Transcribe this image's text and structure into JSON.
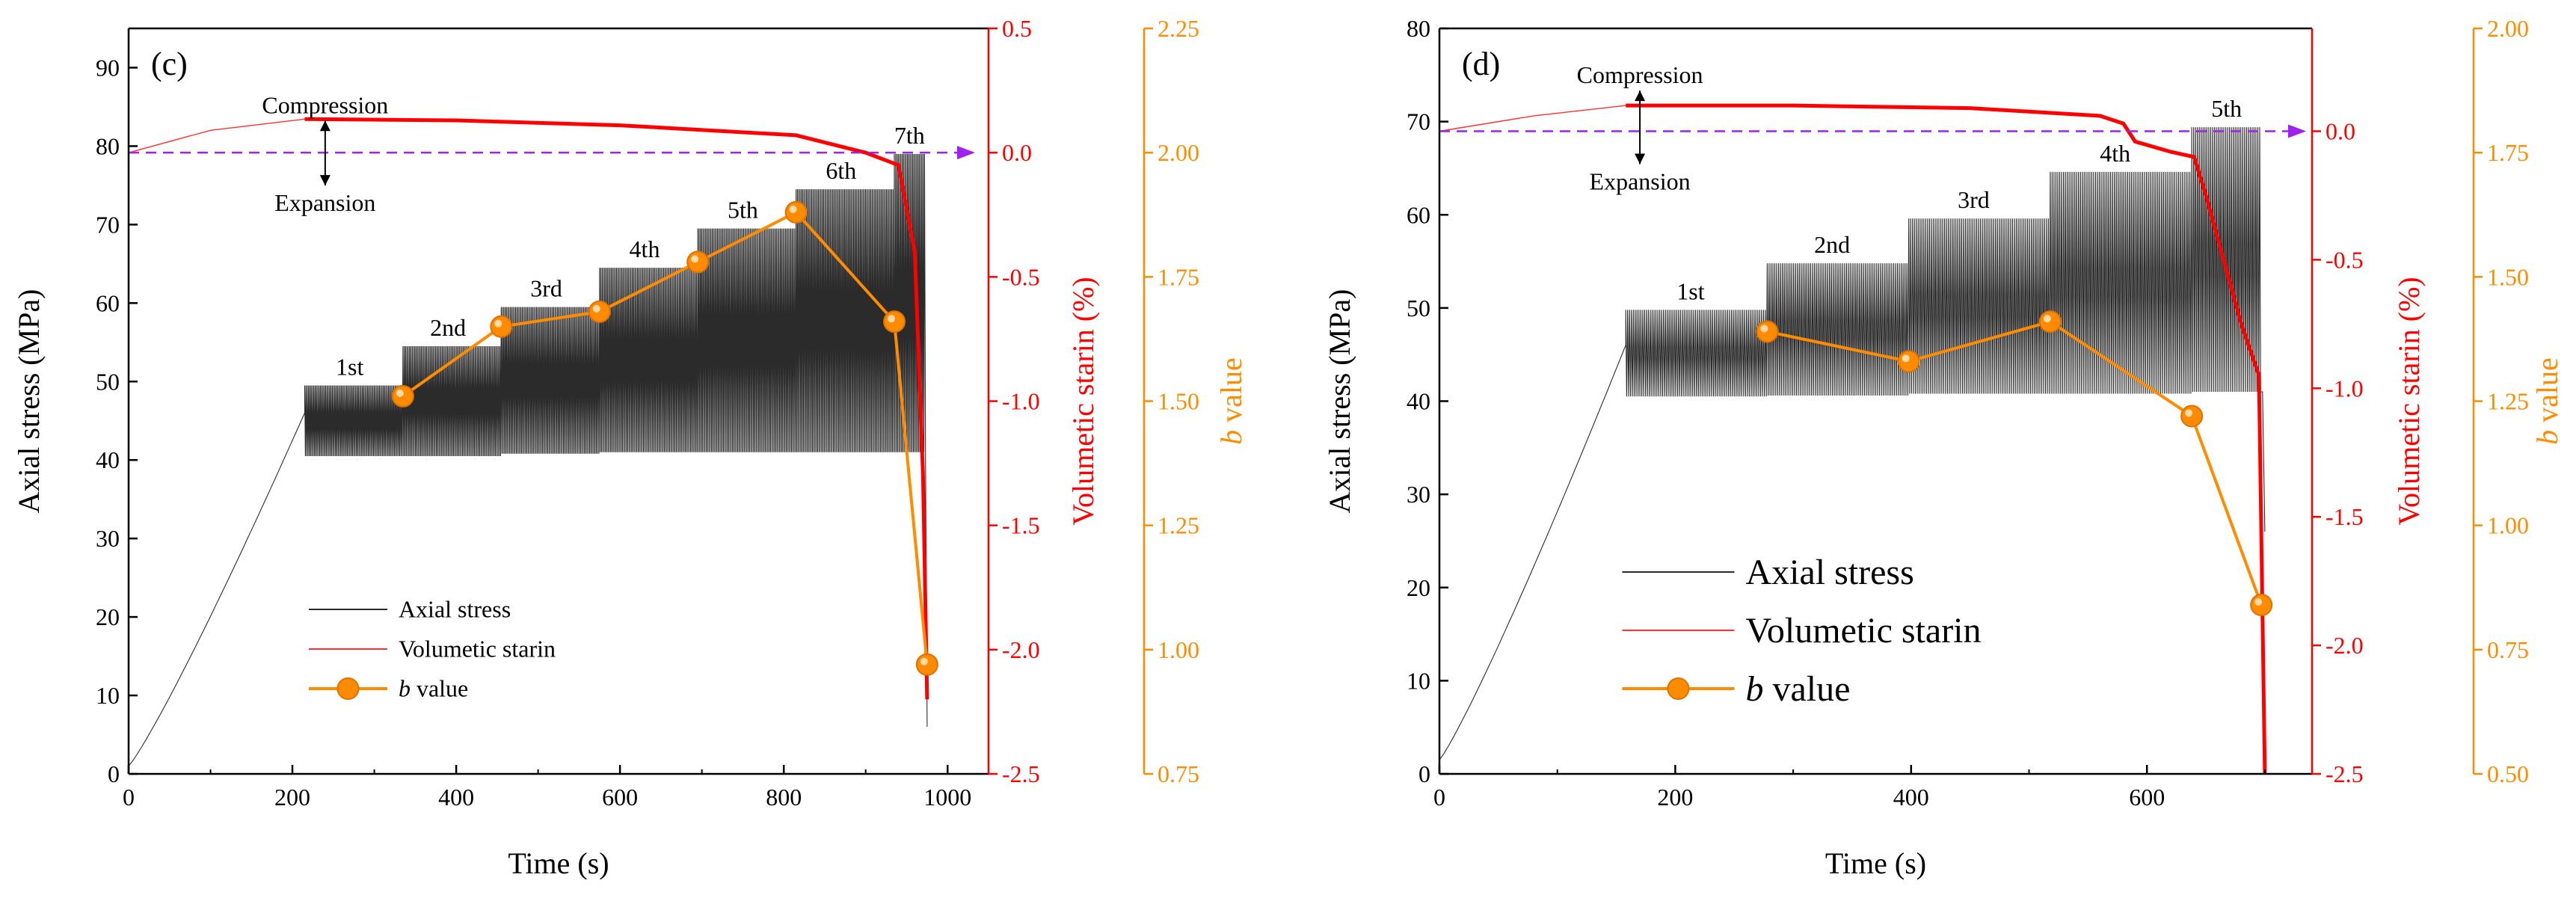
{
  "chart_data": [
    {
      "panel": "(c)",
      "type": "line",
      "xlabel": "Time (s)",
      "xlim": [
        0,
        1050
      ],
      "xticks": [
        0,
        200,
        400,
        600,
        800,
        1000
      ],
      "axes": {
        "left": {
          "label": "Axial stress (MPa)",
          "lim": [
            0,
            95
          ],
          "ticks": [
            0,
            10,
            20,
            30,
            40,
            50,
            60,
            70,
            80,
            90
          ],
          "color": "#000000"
        },
        "right1": {
          "label": "Volumetic starin (%)",
          "lim": [
            -2.5,
            0.5
          ],
          "ticks": [
            "0.5",
            "0.0",
            "-0.5",
            "-1.0",
            "-1.5",
            "-2.0",
            "-2.5"
          ],
          "color": "#ff0000"
        },
        "right2": {
          "label_italic": "b",
          "label_rest": " value",
          "lim": [
            0.75,
            2.25
          ],
          "ticks": [
            "2.25",
            "2.00",
            "1.75",
            "1.50",
            "1.25",
            "1.00",
            "0.75"
          ],
          "color": "#ff8c00"
        }
      },
      "loading": {
        "end_time": 215,
        "stress_start": 1,
        "stress_end": 46
      },
      "stages": [
        {
          "label": "1st",
          "t0": 215,
          "t1": 335,
          "lo": 40.5,
          "hi": 49.5
        },
        {
          "label": "2nd",
          "t0": 335,
          "t1": 455,
          "lo": 40.5,
          "hi": 54.5
        },
        {
          "label": "3rd",
          "t0": 455,
          "t1": 575,
          "lo": 40.8,
          "hi": 59.5
        },
        {
          "label": "4th",
          "t0": 575,
          "t1": 695,
          "lo": 41.0,
          "hi": 64.5
        },
        {
          "label": "5th",
          "t0": 695,
          "t1": 815,
          "lo": 41.0,
          "hi": 69.5
        },
        {
          "label": "6th",
          "t0": 815,
          "t1": 935,
          "lo": 41.0,
          "hi": 74.5
        },
        {
          "label": "7th",
          "t0": 935,
          "t1": 972,
          "lo": 41.0,
          "hi": 79.0
        }
      ],
      "failure": {
        "time": 975,
        "stress": 6
      },
      "volumetric_strain": [
        [
          0,
          0.0
        ],
        [
          100,
          0.09
        ],
        [
          215,
          0.135
        ],
        [
          400,
          0.13
        ],
        [
          600,
          0.11
        ],
        [
          815,
          0.07
        ],
        [
          900,
          0.0
        ],
        [
          940,
          -0.05
        ],
        [
          960,
          -0.4
        ],
        [
          970,
          -1.3
        ],
        [
          975,
          -2.2
        ]
      ],
      "b_value": {
        "times": [
          335,
          455,
          575,
          695,
          815,
          935,
          975
        ],
        "values": [
          1.51,
          1.65,
          1.68,
          1.78,
          1.88,
          1.66,
          0.97
        ]
      },
      "compression_label": "Compression",
      "expansion_label": "Expansion",
      "legend": [
        "Axial stress",
        "Volumetic starin",
        "value"
      ],
      "legend_italic_b": "b"
    },
    {
      "panel": "(d)",
      "type": "line",
      "xlabel": "Time (s)",
      "xlim": [
        0,
        740
      ],
      "xticks": [
        0,
        200,
        400,
        600
      ],
      "axes": {
        "left": {
          "label": "Axial stress (MPa)",
          "lim": [
            0,
            80
          ],
          "ticks": [
            0,
            10,
            20,
            30,
            40,
            50,
            60,
            70,
            80
          ],
          "color": "#000000"
        },
        "right1": {
          "label": "Volumetic starin (%)",
          "lim": [
            -2.5,
            0.4
          ],
          "ticks": [
            "0.0",
            "-0.5",
            "-1.0",
            "-1.5",
            "-2.0",
            "-2.5"
          ],
          "color": "#ff0000"
        },
        "right2": {
          "label_italic": "b",
          "label_rest": " value",
          "lim": [
            0.5,
            2.0
          ],
          "ticks": [
            "2.00",
            "1.75",
            "1.50",
            "1.25",
            "1.00",
            "0.75",
            "0.50"
          ],
          "color": "#ff8c00"
        }
      },
      "loading": {
        "end_time": 158,
        "stress_start": 1.5,
        "stress_end": 46
      },
      "stages": [
        {
          "label": "1st",
          "t0": 158,
          "t1": 278,
          "lo": 40.5,
          "hi": 49.8
        },
        {
          "label": "2nd",
          "t0": 278,
          "t1": 398,
          "lo": 40.6,
          "hi": 54.8
        },
        {
          "label": "3rd",
          "t0": 398,
          "t1": 518,
          "lo": 40.8,
          "hi": 59.6
        },
        {
          "label": "4th",
          "t0": 518,
          "t1": 638,
          "lo": 40.8,
          "hi": 64.6
        },
        {
          "label": "5th",
          "t0": 638,
          "t1": 697,
          "lo": 41.0,
          "hi": 69.4
        }
      ],
      "failure": {
        "time": 700,
        "stress": 26
      },
      "volumetric_strain": [
        [
          0,
          0.0
        ],
        [
          80,
          0.06
        ],
        [
          158,
          0.1
        ],
        [
          300,
          0.1
        ],
        [
          450,
          0.09
        ],
        [
          560,
          0.06
        ],
        [
          580,
          0.03
        ],
        [
          590,
          -0.04
        ],
        [
          620,
          -0.08
        ],
        [
          640,
          -0.1
        ],
        [
          650,
          -0.25
        ],
        [
          665,
          -0.5
        ],
        [
          680,
          -0.75
        ],
        [
          695,
          -0.95
        ],
        [
          700,
          -2.5
        ]
      ],
      "b_value": {
        "times": [
          278,
          398,
          518,
          638,
          697
        ],
        "values": [
          1.39,
          1.33,
          1.41,
          1.22,
          0.84
        ]
      },
      "compression_label": "Compression",
      "expansion_label": "Expansion",
      "legend": [
        "Axial stress",
        "Volumetic starin",
        "value"
      ],
      "legend_italic_b": "b"
    }
  ]
}
